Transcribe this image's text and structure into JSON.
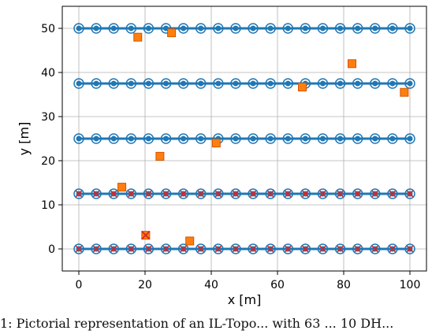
{
  "chart_data": {
    "type": "scatter",
    "title": "",
    "xlabel": "x [m]",
    "ylabel": "y [m]",
    "xlim": [
      -5,
      105
    ],
    "ylim": [
      -5,
      55
    ],
    "xticks": [
      0,
      20,
      40,
      60,
      80,
      100
    ],
    "yticks": [
      0,
      10,
      20,
      30,
      40,
      50
    ],
    "grid": true,
    "lines": [
      {
        "y": 0,
        "x_start": 0,
        "x_end": 100,
        "color": "#1f77b4"
      },
      {
        "y": 12.5,
        "x_start": 0,
        "x_end": 100,
        "color": "#1f77b4"
      },
      {
        "y": 25,
        "x_start": 0,
        "x_end": 100,
        "color": "#1f77b4"
      },
      {
        "y": 37.5,
        "x_start": 0,
        "x_end": 100,
        "color": "#1f77b4"
      },
      {
        "y": 50,
        "x_start": 0,
        "x_end": 100,
        "color": "#1f77b4"
      }
    ],
    "node_x": [
      0,
      5.26,
      10.53,
      15.79,
      21.05,
      26.32,
      31.58,
      36.84,
      42.11,
      47.37,
      52.63,
      57.89,
      63.16,
      68.42,
      73.68,
      78.95,
      84.21,
      89.47,
      94.74,
      100
    ],
    "node_rows": [
      {
        "y": 0,
        "marker": "circle-cross"
      },
      {
        "y": 12.5,
        "marker": "circle-cross"
      },
      {
        "y": 25,
        "marker": "circle"
      },
      {
        "y": 37.5,
        "marker": "circle"
      },
      {
        "y": 50,
        "marker": "circle"
      }
    ],
    "squares": [
      {
        "x": 17.8,
        "y": 48
      },
      {
        "x": 28,
        "y": 49
      },
      {
        "x": 82.5,
        "y": 42
      },
      {
        "x": 67.5,
        "y": 36.7
      },
      {
        "x": 98.3,
        "y": 35.5
      },
      {
        "x": 41.5,
        "y": 24
      },
      {
        "x": 24.5,
        "y": 21
      },
      {
        "x": 13,
        "y": 14
      },
      {
        "x": 33.5,
        "y": 1.8
      }
    ],
    "crossed_square": {
      "x": 20.2,
      "y": 3.1
    },
    "colors": {
      "node": "#1f77b4",
      "square_fill": "#ff7f0e",
      "square_edge": "#d35400",
      "cross": "#d62728",
      "grid": "#b0b0b0"
    }
  },
  "caption": "1:  Pictorial representation of an IL-Topo... with 63 ... 10 DH..."
}
